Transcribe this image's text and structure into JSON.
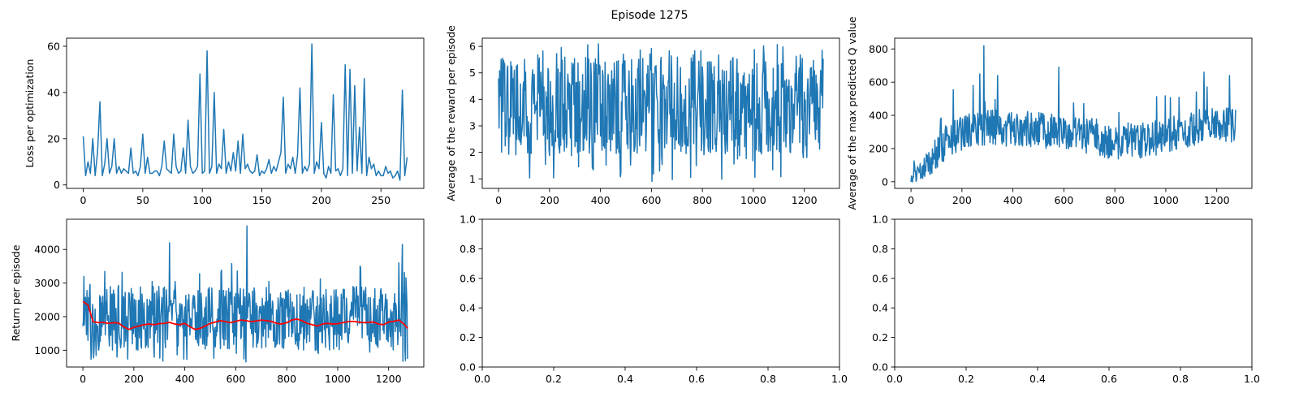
{
  "figure": {
    "title": "Episode 1275"
  },
  "colors": {
    "series_blue": "#1f77b4",
    "moving_average_red": "#ff0000"
  },
  "chart_data": [
    {
      "id": "loss",
      "type": "line",
      "title": "",
      "xlabel": "",
      "ylabel": "Loss per optimization",
      "xlim": [
        -14,
        286
      ],
      "ylim": [
        -1.5,
        63.5
      ],
      "xticks": [
        0,
        50,
        100,
        150,
        200,
        250
      ],
      "yticks": [
        0,
        20,
        40,
        60
      ],
      "grid": false,
      "series": [
        {
          "color": "#1f77b4",
          "x": [
            0,
            2,
            4,
            6,
            8,
            10,
            12,
            14,
            16,
            18,
            20,
            22,
            24,
            26,
            28,
            30,
            32,
            34,
            36,
            38,
            40,
            42,
            44,
            46,
            48,
            50,
            52,
            54,
            56,
            58,
            60,
            62,
            64,
            66,
            68,
            70,
            72,
            74,
            76,
            78,
            80,
            82,
            84,
            86,
            88,
            90,
            92,
            94,
            96,
            98,
            100,
            102,
            104,
            106,
            108,
            110,
            112,
            114,
            116,
            118,
            120,
            122,
            124,
            126,
            128,
            130,
            132,
            134,
            136,
            138,
            140,
            142,
            144,
            146,
            148,
            150,
            152,
            154,
            156,
            158,
            160,
            162,
            164,
            166,
            168,
            170,
            172,
            174,
            176,
            178,
            180,
            182,
            184,
            186,
            188,
            190,
            192,
            194,
            196,
            198,
            200,
            202,
            204,
            206,
            208,
            210,
            212,
            214,
            216,
            218,
            220,
            222,
            224,
            226,
            228,
            230,
            232,
            234,
            236,
            238,
            240,
            242,
            244,
            246,
            248,
            250,
            252,
            254,
            256,
            258,
            260,
            262,
            264,
            266,
            268,
            270,
            272
          ],
          "y": [
            21,
            4,
            10,
            5,
            20,
            4,
            14,
            36,
            4,
            9,
            20,
            5,
            8,
            20,
            5,
            8,
            5,
            7,
            6,
            5,
            16,
            5,
            6,
            4,
            8,
            22,
            5,
            12,
            5,
            5,
            6,
            6,
            4,
            8,
            19,
            7,
            6,
            5,
            22,
            8,
            5,
            6,
            16,
            5,
            28,
            8,
            5,
            6,
            8,
            48,
            5,
            6,
            58,
            5,
            8,
            40,
            5,
            9,
            7,
            24,
            5,
            10,
            6,
            14,
            6,
            19,
            5,
            22,
            7,
            9,
            6,
            5,
            6,
            13,
            4,
            6,
            5,
            7,
            11,
            5,
            8,
            6,
            10,
            14,
            38,
            5,
            9,
            7,
            12,
            5,
            13,
            42,
            5,
            8,
            6,
            9,
            61,
            5,
            10,
            7,
            27,
            5,
            3,
            8,
            5,
            39,
            6,
            7,
            4,
            7,
            52,
            4,
            50,
            5,
            43,
            6,
            25,
            5,
            46,
            4,
            12,
            7,
            9,
            4,
            6,
            4,
            4,
            8,
            5,
            6,
            3,
            4,
            6,
            2,
            41,
            4,
            12
          ]
        }
      ]
    },
    {
      "id": "avg-reward",
      "type": "line",
      "title": "",
      "xlabel": "",
      "ylabel": "Average of the reward per episode",
      "xlim": [
        -64,
        1338
      ],
      "ylim": [
        0.64,
        6.31
      ],
      "xticks": [
        0,
        200,
        400,
        600,
        800,
        1000,
        1200
      ],
      "yticks": [
        1,
        2,
        3,
        4,
        5,
        6
      ],
      "grid": false,
      "series": [
        {
          "color": "#1f77b4",
          "noise_band": {
            "x_start": 0,
            "x_end": 1275,
            "x_step": 2,
            "band_min": 1.9,
            "band_max": 5.6,
            "rare_min": 0.9,
            "rare_max": 6.1
          }
        }
      ]
    },
    {
      "id": "max-q",
      "type": "line",
      "title": "",
      "xlabel": "",
      "ylabel": "Average of the max predicted Q value",
      "xlim": [
        -64,
        1338
      ],
      "ylim": [
        -40,
        865
      ],
      "xticks": [
        0,
        200,
        400,
        600,
        800,
        1000,
        1200
      ],
      "yticks": [
        0,
        200,
        400,
        600,
        800
      ],
      "grid": false,
      "series": [
        {
          "color": "#1f77b4",
          "trend_points": [
            [
              0,
              10
            ],
            [
              50,
              80
            ],
            [
              100,
              180
            ],
            [
              150,
              260
            ],
            [
              200,
              300
            ],
            [
              300,
              330
            ],
            [
              400,
              320
            ],
            [
              500,
              310
            ],
            [
              600,
              290
            ],
            [
              700,
              280
            ],
            [
              800,
              240
            ],
            [
              900,
              250
            ],
            [
              1000,
              280
            ],
            [
              1100,
              320
            ],
            [
              1200,
              340
            ],
            [
              1275,
              330
            ]
          ],
          "spread": 110,
          "spikes": [
            [
              287,
              820
            ],
            [
              270,
              650
            ],
            [
              340,
              640
            ],
            [
              580,
              690
            ],
            [
              1150,
              660
            ],
            [
              1250,
              640
            ]
          ]
        }
      ]
    },
    {
      "id": "return",
      "type": "line",
      "title": "",
      "xlabel": "",
      "ylabel": "Return per episode",
      "xlim": [
        -64,
        1338
      ],
      "ylim": [
        500,
        4900
      ],
      "xticks": [
        0,
        200,
        400,
        600,
        800,
        1000,
        1200
      ],
      "yticks": [
        1000,
        2000,
        3000,
        4000
      ],
      "grid": false,
      "series": [
        {
          "color": "#1f77b4",
          "noise_band": {
            "x_start": 0,
            "x_end": 1275,
            "x_step": 2,
            "band_min": 1000,
            "band_max": 2900,
            "rare_min": 650,
            "rare_max": 3600
          },
          "spikes": [
            [
              5,
              3200
            ],
            [
              340,
              4200
            ],
            [
              645,
              4700
            ],
            [
              1255,
              4150
            ],
            [
              1240,
              3600
            ]
          ]
        },
        {
          "color": "#ff0000",
          "x": [
            0,
            20,
            40,
            60,
            80,
            100,
            120,
            140,
            160,
            180,
            200,
            220,
            240,
            260,
            280,
            300,
            320,
            340,
            360,
            380,
            400,
            420,
            440,
            460,
            480,
            500,
            520,
            540,
            560,
            580,
            600,
            620,
            640,
            660,
            680,
            700,
            720,
            740,
            760,
            780,
            800,
            820,
            840,
            860,
            880,
            900,
            920,
            940,
            960,
            980,
            1000,
            1020,
            1040,
            1060,
            1080,
            1100,
            1120,
            1140,
            1160,
            1180,
            1200,
            1220,
            1240,
            1260,
            1275
          ],
          "y": [
            2450,
            2350,
            1850,
            1820,
            1830,
            1800,
            1820,
            1810,
            1700,
            1620,
            1680,
            1720,
            1760,
            1780,
            1760,
            1790,
            1800,
            1830,
            1780,
            1760,
            1800,
            1700,
            1620,
            1650,
            1720,
            1800,
            1840,
            1880,
            1850,
            1820,
            1860,
            1900,
            1880,
            1850,
            1870,
            1900,
            1880,
            1860,
            1800,
            1780,
            1820,
            1900,
            1930,
            1880,
            1800,
            1760,
            1720,
            1780,
            1800,
            1780,
            1790,
            1820,
            1850,
            1860,
            1840,
            1820,
            1830,
            1840,
            1780,
            1760,
            1840,
            1860,
            1900,
            1780,
            1650
          ]
        }
      ]
    },
    {
      "id": "empty-1",
      "type": "line",
      "title": "",
      "xlabel": "",
      "ylabel": "",
      "xlim": [
        0,
        1
      ],
      "ylim": [
        0,
        1
      ],
      "xticks": [
        0.0,
        0.2,
        0.4,
        0.6,
        0.8,
        1.0
      ],
      "yticks": [
        0.0,
        0.2,
        0.4,
        0.6,
        0.8,
        1.0
      ],
      "tick_labels_x": [
        "0.0",
        "0.2",
        "0.4",
        "0.6",
        "0.8",
        "1.0"
      ],
      "tick_labels_y": [
        "0.0",
        "0.2",
        "0.4",
        "0.6",
        "0.8",
        "1.0"
      ],
      "grid": false,
      "series": []
    },
    {
      "id": "empty-2",
      "type": "line",
      "title": "",
      "xlabel": "",
      "ylabel": "",
      "xlim": [
        0,
        1
      ],
      "ylim": [
        0,
        1
      ],
      "xticks": [
        0.0,
        0.2,
        0.4,
        0.6,
        0.8,
        1.0
      ],
      "yticks": [
        0.0,
        0.2,
        0.4,
        0.6,
        0.8,
        1.0
      ],
      "tick_labels_x": [
        "0.0",
        "0.2",
        "0.4",
        "0.6",
        "0.8",
        "1.0"
      ],
      "tick_labels_y": [
        "0.0",
        "0.2",
        "0.4",
        "0.6",
        "0.8",
        "1.0"
      ],
      "grid": false,
      "series": []
    }
  ]
}
